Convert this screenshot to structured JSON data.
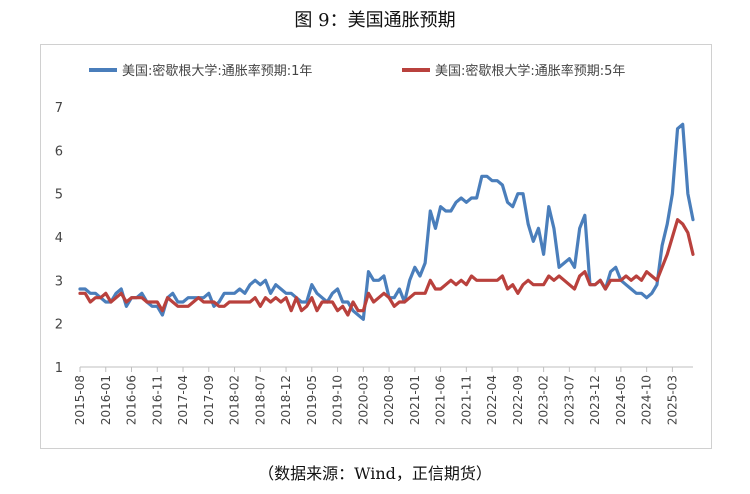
{
  "figure": {
    "title": "图 9：美国通胀预期",
    "source": "（数据来源：Wind，正信期货）"
  },
  "chart_data": {
    "type": "line",
    "title": "",
    "xlabel": "",
    "ylabel": "",
    "ylim": [
      1,
      7
    ],
    "yticks": [
      "1",
      "2",
      "3",
      "4",
      "5",
      "6",
      "7"
    ],
    "legend_position": "top",
    "grid": false,
    "x_tick_labels": [
      "2015-08",
      "2016-01",
      "2016-06",
      "2016-11",
      "2017-04",
      "2017-09",
      "2018-02",
      "2018-07",
      "2018-12",
      "2019-05",
      "2019-10",
      "2020-03",
      "2020-08",
      "2021-01",
      "2021-06",
      "2021-11",
      "2022-04",
      "2022-09",
      "2023-02",
      "2023-07",
      "2023-12",
      "2024-05",
      "2024-10",
      "2025-03"
    ],
    "series": [
      {
        "name": "美国:密歇根大学:通胀率预期:1年",
        "color": "#4a7ebb",
        "values": [
          2.8,
          2.8,
          2.7,
          2.7,
          2.6,
          2.5,
          2.5,
          2.7,
          2.8,
          2.4,
          2.6,
          2.6,
          2.7,
          2.5,
          2.4,
          2.4,
          2.2,
          2.6,
          2.7,
          2.5,
          2.5,
          2.6,
          2.6,
          2.6,
          2.6,
          2.7,
          2.4,
          2.5,
          2.7,
          2.7,
          2.7,
          2.8,
          2.7,
          2.9,
          3.0,
          2.9,
          3.0,
          2.7,
          2.9,
          2.8,
          2.7,
          2.7,
          2.6,
          2.5,
          2.5,
          2.9,
          2.7,
          2.6,
          2.5,
          2.7,
          2.8,
          2.5,
          2.5,
          2.3,
          2.2,
          2.1,
          3.2,
          3.0,
          3.0,
          3.1,
          2.6,
          2.6,
          2.8,
          2.5,
          3.0,
          3.3,
          3.1,
          3.4,
          4.6,
          4.2,
          4.7,
          4.6,
          4.6,
          4.8,
          4.9,
          4.8,
          4.9,
          4.9,
          5.4,
          5.4,
          5.3,
          5.3,
          5.2,
          4.8,
          4.7,
          5.0,
          5.0,
          4.3,
          3.9,
          4.2,
          3.6,
          4.7,
          4.2,
          3.3,
          3.4,
          3.5,
          3.3,
          4.2,
          4.5,
          2.9,
          2.9,
          3.0,
          2.8,
          3.2,
          3.3,
          3.0,
          2.9,
          2.8,
          2.7,
          2.7,
          2.6,
          2.7,
          2.9,
          3.8,
          4.3,
          5.0,
          6.5,
          6.6,
          5.0,
          4.4
        ]
      },
      {
        "name": "美国:密歇根大学:通胀率预期:5年",
        "color": "#b9413d",
        "values": [
          2.7,
          2.7,
          2.5,
          2.6,
          2.6,
          2.7,
          2.5,
          2.6,
          2.7,
          2.5,
          2.6,
          2.6,
          2.6,
          2.5,
          2.5,
          2.5,
          2.3,
          2.6,
          2.5,
          2.4,
          2.4,
          2.4,
          2.5,
          2.6,
          2.5,
          2.5,
          2.5,
          2.4,
          2.4,
          2.5,
          2.5,
          2.5,
          2.5,
          2.5,
          2.6,
          2.4,
          2.6,
          2.5,
          2.6,
          2.5,
          2.6,
          2.3,
          2.6,
          2.3,
          2.4,
          2.6,
          2.3,
          2.5,
          2.5,
          2.5,
          2.3,
          2.4,
          2.2,
          2.5,
          2.3,
          2.3,
          2.7,
          2.5,
          2.6,
          2.7,
          2.6,
          2.4,
          2.5,
          2.5,
          2.6,
          2.7,
          2.7,
          2.7,
          3.0,
          2.8,
          2.8,
          2.9,
          3.0,
          2.9,
          3.0,
          2.9,
          3.1,
          3.0,
          3.0,
          3.0,
          3.0,
          3.0,
          3.1,
          2.8,
          2.9,
          2.7,
          2.9,
          3.0,
          2.9,
          2.9,
          2.9,
          3.1,
          3.0,
          3.1,
          3.0,
          2.9,
          2.8,
          3.1,
          3.2,
          2.9,
          2.9,
          3.0,
          2.8,
          3.0,
          3.0,
          3.0,
          3.1,
          3.0,
          3.1,
          3.0,
          3.2,
          3.1,
          3.0,
          3.3,
          3.6,
          4.0,
          4.4,
          4.3,
          4.1,
          3.6
        ]
      }
    ]
  }
}
